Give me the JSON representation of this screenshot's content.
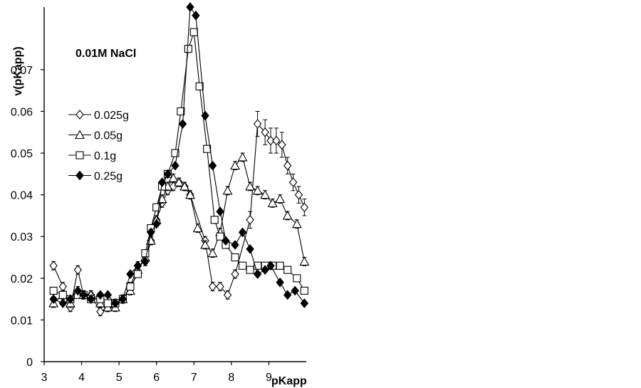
{
  "chart_data": {
    "type": "line",
    "title": "",
    "annotation": "0.01M NaCl",
    "xlabel": "pKapp",
    "ylabel": "v(pKapp)",
    "xlim": [
      3,
      10
    ],
    "ylim": [
      0,
      0.085
    ],
    "xticks": [
      3,
      4,
      5,
      6,
      7,
      8,
      9
    ],
    "yticks": [
      0,
      0.01,
      0.02,
      0.03,
      0.04,
      0.05,
      0.06,
      0.07
    ],
    "ytick_labels": [
      "0",
      "0.01",
      "0.02",
      "0.03",
      "0.04",
      "0.05",
      "0.06",
      "0.07"
    ],
    "legend_position": "left",
    "series": [
      {
        "name": "0.025g",
        "marker": "diamond-open",
        "x": [
          3.25,
          3.5,
          3.7,
          3.9,
          4.05,
          4.25,
          4.5,
          4.7,
          4.9,
          5.1,
          5.3,
          5.5,
          5.7,
          5.85,
          6.0,
          6.15,
          6.3,
          6.45,
          6.6,
          6.75,
          6.9,
          7.3,
          7.5,
          7.7,
          7.9,
          8.1,
          8.5,
          8.7,
          8.9,
          9.05,
          9.2,
          9.35,
          9.5,
          9.65,
          9.8,
          9.95
        ],
        "y": [
          0.023,
          0.018,
          0.013,
          0.022,
          0.016,
          0.016,
          0.012,
          0.013,
          0.014,
          0.015,
          0.018,
          0.023,
          0.024,
          0.029,
          0.034,
          0.038,
          0.041,
          0.042,
          0.043,
          0.042,
          0.04,
          0.029,
          0.018,
          0.018,
          0.016,
          0.021,
          0.034,
          0.057,
          0.055,
          0.053,
          0.053,
          0.052,
          0.047,
          0.043,
          0.04,
          0.037
        ],
        "error": [
          0.001,
          0.001,
          0.001,
          0.001,
          0.001,
          0.001,
          0.001,
          0.001,
          0.001,
          0.001,
          0.001,
          0.001,
          0.001,
          0.001,
          0.001,
          0.001,
          0.001,
          0.001,
          0.001,
          0.001,
          0.001,
          0.001,
          0.001,
          0.001,
          0.001,
          0.001,
          0.002,
          0.003,
          0.003,
          0.003,
          0.003,
          0.003,
          0.002,
          0.002,
          0.002,
          0.002
        ]
      },
      {
        "name": "0.05g",
        "marker": "triangle-open",
        "x": [
          3.25,
          3.5,
          3.7,
          3.9,
          4.05,
          4.25,
          4.5,
          4.7,
          4.9,
          5.1,
          5.3,
          5.5,
          5.7,
          5.85,
          6.0,
          6.15,
          6.3,
          6.45,
          6.6,
          6.75,
          6.9,
          7.1,
          7.3,
          7.5,
          7.7,
          7.9,
          8.1,
          8.3,
          8.5,
          8.7,
          8.9,
          9.1,
          9.3,
          9.5,
          9.75,
          9.95
        ],
        "y": [
          0.014,
          0.016,
          0.014,
          0.017,
          0.016,
          0.016,
          0.014,
          0.013,
          0.013,
          0.015,
          0.017,
          0.022,
          0.025,
          0.029,
          0.034,
          0.039,
          0.042,
          0.044,
          0.043,
          0.042,
          0.04,
          0.032,
          0.028,
          0.026,
          0.031,
          0.041,
          0.047,
          0.049,
          0.042,
          0.041,
          0.04,
          0.038,
          0.039,
          0.035,
          0.033,
          0.024
        ],
        "error": [
          0.001,
          0.001,
          0.001,
          0.001,
          0.001,
          0.001,
          0.001,
          0.001,
          0.001,
          0.001,
          0.001,
          0.001,
          0.001,
          0.001,
          0.001,
          0.001,
          0.001,
          0.001,
          0.001,
          0.001,
          0.001,
          0.001,
          0.001,
          0.001,
          0.001,
          0.001,
          0.001,
          0.001,
          0.001,
          0.001,
          0.001,
          0.001,
          0.001,
          0.001,
          0.001,
          0.001
        ]
      },
      {
        "name": "0.1g",
        "marker": "square-open",
        "x": [
          3.25,
          3.5,
          3.7,
          3.9,
          4.05,
          4.25,
          4.5,
          4.7,
          4.9,
          5.1,
          5.3,
          5.5,
          5.7,
          5.85,
          6.0,
          6.15,
          6.3,
          6.5,
          6.65,
          6.85,
          7.0,
          7.15,
          7.35,
          7.55,
          7.7,
          7.85,
          8.1,
          8.3,
          8.5,
          8.7,
          8.9,
          9.1,
          9.3,
          9.5,
          9.75,
          9.95
        ],
        "y": [
          0.017,
          0.016,
          0.015,
          0.016,
          0.016,
          0.015,
          0.015,
          0.014,
          0.014,
          0.015,
          0.018,
          0.021,
          0.026,
          0.032,
          0.037,
          0.042,
          0.045,
          0.05,
          0.06,
          0.075,
          0.079,
          0.066,
          0.051,
          0.034,
          0.03,
          0.028,
          0.025,
          0.023,
          0.022,
          0.023,
          0.023,
          0.023,
          0.023,
          0.022,
          0.02,
          0.017
        ],
        "error": []
      },
      {
        "name": "0.25g",
        "marker": "diamond-filled",
        "x": [
          3.25,
          3.5,
          3.7,
          3.9,
          4.05,
          4.25,
          4.5,
          4.7,
          4.9,
          5.1,
          5.3,
          5.5,
          5.7,
          5.85,
          6.0,
          6.15,
          6.3,
          6.5,
          6.7,
          6.9,
          7.05,
          7.3,
          7.5,
          7.7,
          7.85,
          8.1,
          8.3,
          8.5,
          8.7,
          8.9,
          9.05,
          9.3,
          9.5,
          9.7,
          9.95
        ],
        "y": [
          0.015,
          0.014,
          0.015,
          0.017,
          0.016,
          0.015,
          0.016,
          0.016,
          0.014,
          0.015,
          0.021,
          0.023,
          0.024,
          0.031,
          0.033,
          0.043,
          0.045,
          0.047,
          0.057,
          0.085,
          0.083,
          0.059,
          0.047,
          0.036,
          0.029,
          0.028,
          0.031,
          0.027,
          0.021,
          0.022,
          0.023,
          0.019,
          0.016,
          0.017,
          0.014
        ],
        "error": []
      }
    ]
  }
}
